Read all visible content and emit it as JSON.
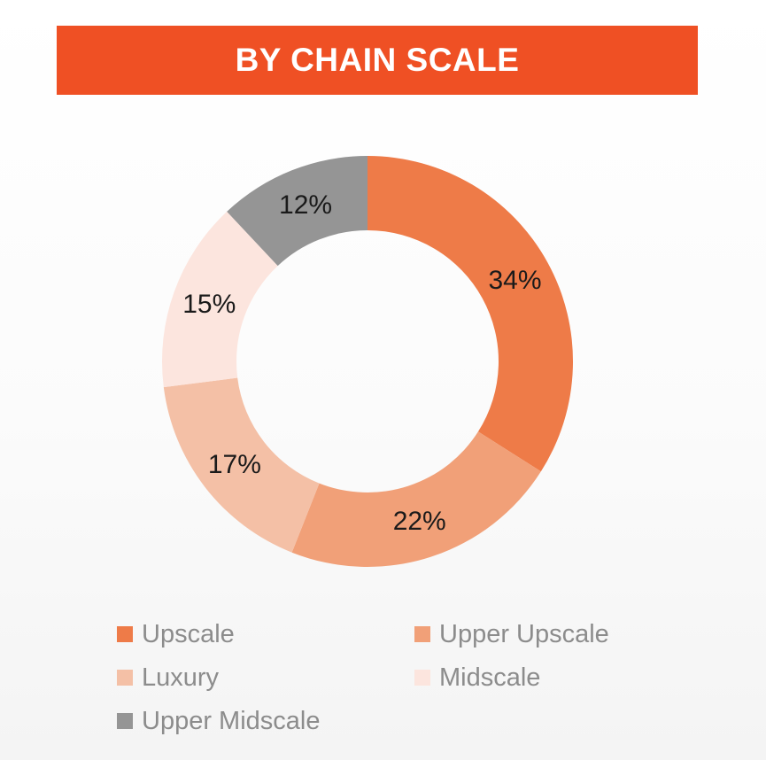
{
  "title": "BY CHAIN SCALE",
  "colors": {
    "title_bar": "#EF5024",
    "legend_text": "#8C8C8C"
  },
  "chart_data": {
    "type": "pie",
    "variant": "donut",
    "title": "BY CHAIN SCALE",
    "categories": [
      "Upscale",
      "Upper Upscale",
      "Luxury",
      "Midscale",
      "Upper Midscale"
    ],
    "values": [
      34,
      22,
      17,
      15,
      12
    ],
    "labels": [
      "34%",
      "22%",
      "17%",
      "15%",
      "12%"
    ],
    "colors": [
      "#EE7B48",
      "#F1A078",
      "#F4C0A6",
      "#FCE5DE",
      "#959595"
    ],
    "legend_position": "bottom"
  }
}
